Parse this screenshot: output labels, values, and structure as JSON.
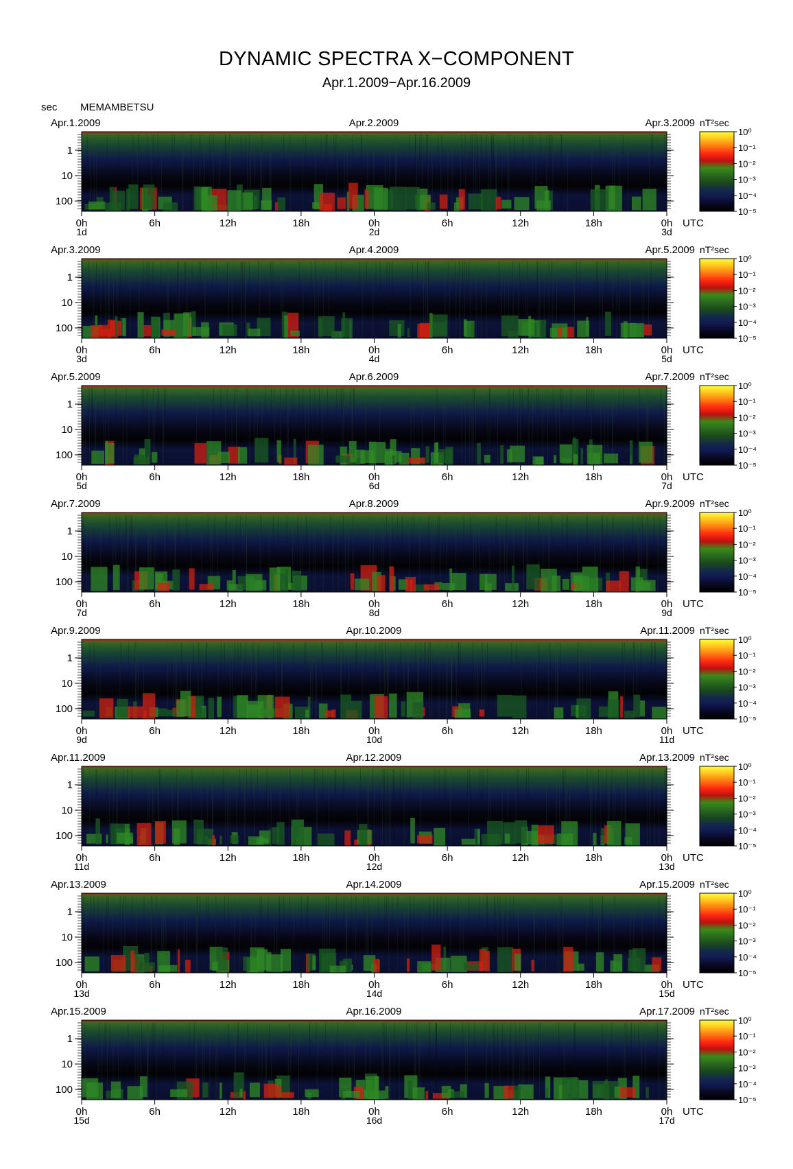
{
  "title": "DYNAMIC SPECTRA X−COMPONENT",
  "subtitle": "Apr.1.2009−Apr.16.2009",
  "y_unit_label": "sec",
  "station": "MEMAMBETSU",
  "utc_label": "UTC",
  "colorbar_unit": "nT²sec",
  "colorbar_ticks": [
    "10⁰",
    "10⁻¹",
    "10⁻²",
    "10⁻³",
    "10⁻⁴",
    "10⁻⁵"
  ],
  "colorbar_colors": [
    "#ffff3c",
    "#ffc21e",
    "#ff7a12",
    "#ff2a10",
    "#c01010",
    "#3a8a18",
    "#2a6a20",
    "#1a4a1a",
    "#142a4a",
    "#101850",
    "#080820",
    "#000000"
  ],
  "chart_data": {
    "type": "heatmap",
    "y_axis": {
      "label": "sec",
      "scale": "log",
      "ticks": [
        "1",
        "10",
        "100"
      ]
    },
    "x_ticks": [
      "0h",
      "6h",
      "12h",
      "18h",
      "0h",
      "6h",
      "12h",
      "18h",
      "0h"
    ],
    "colorbar": {
      "unit": "nT²sec",
      "range": [
        "10⁻⁵",
        "10⁰"
      ],
      "scale": "log"
    },
    "panels": [
      {
        "start_date": "Apr.1.2009",
        "mid_date": "Apr.2.2009",
        "end_date": "Apr.3.2009",
        "day_labels": [
          "1d",
          "2d",
          "3d"
        ]
      },
      {
        "start_date": "Apr.3.2009",
        "mid_date": "Apr.4.2009",
        "end_date": "Apr.5.2009",
        "day_labels": [
          "3d",
          "4d",
          "5d"
        ]
      },
      {
        "start_date": "Apr.5.2009",
        "mid_date": "Apr.6.2009",
        "end_date": "Apr.7.2009",
        "day_labels": [
          "5d",
          "6d",
          "7d"
        ]
      },
      {
        "start_date": "Apr.7.2009",
        "mid_date": "Apr.8.2009",
        "end_date": "Apr.9.2009",
        "day_labels": [
          "7d",
          "8d",
          "9d"
        ]
      },
      {
        "start_date": "Apr.9.2009",
        "mid_date": "Apr.10.2009",
        "end_date": "Apr.11.2009",
        "day_labels": [
          "9d",
          "10d",
          "11d"
        ]
      },
      {
        "start_date": "Apr.11.2009",
        "mid_date": "Apr.12.2009",
        "end_date": "Apr.13.2009",
        "day_labels": [
          "11d",
          "12d",
          "13d"
        ]
      },
      {
        "start_date": "Apr.13.2009",
        "mid_date": "Apr.14.2009",
        "end_date": "Apr.15.2009",
        "day_labels": [
          "13d",
          "14d",
          "15d"
        ]
      },
      {
        "start_date": "Apr.15.2009",
        "mid_date": "Apr.16.2009",
        "end_date": "Apr.17.2009",
        "day_labels": [
          "15d",
          "16d",
          "17d"
        ]
      }
    ]
  }
}
